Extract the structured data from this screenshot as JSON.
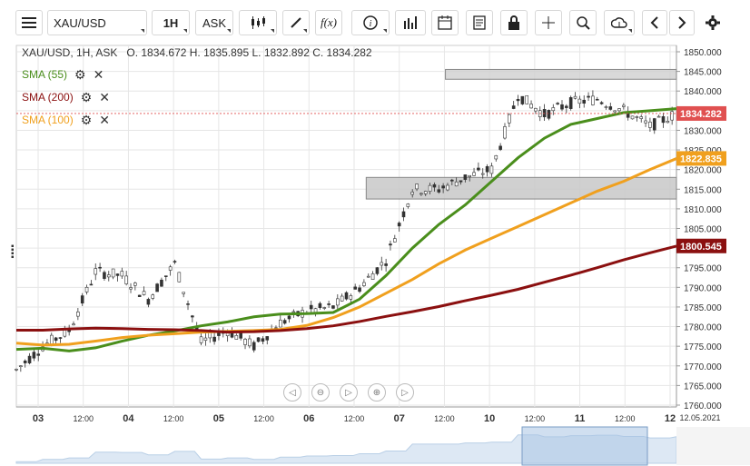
{
  "toolbar": {
    "symbol": "XAU/USD",
    "timeframe": "1H",
    "price_side": "ASK",
    "function_label": "f(x)",
    "icons": [
      "menu-icon",
      "candlestick-type-icon",
      "draw-pen-icon",
      "fx-icon",
      "info-icon",
      "bar-chart-icon",
      "calendar-icon",
      "report-icon",
      "lock-icon",
      "crosshair-icon",
      "zoom-icon",
      "cloud-upload-icon",
      "prev-arrow-icon",
      "next-arrow-icon",
      "settings-gear-icon"
    ]
  },
  "header": {
    "ohlc": "XAU/USD, 1H, ASK   O. 1834.672 H. 1835.895 L. 1832.892 C. 1834.282"
  },
  "indicators": [
    {
      "label": "SMA (55)",
      "color": "#4a8e1c"
    },
    {
      "label": "SMA (200)",
      "color": "#8b1010"
    },
    {
      "label": "SMA (100)",
      "color": "#f0a01e"
    }
  ],
  "chart_data": {
    "type": "line",
    "y_axis_ticks": [
      1760,
      1765,
      1770,
      1775,
      1780,
      1785,
      1790,
      1795,
      1800,
      1805,
      1810,
      1815,
      1820,
      1825,
      1830,
      1835,
      1840,
      1845,
      1850
    ],
    "y_tick_labels": [
      "1760.000",
      "1765.000",
      "1770.000",
      "1775.000",
      "1780.000",
      "1785.000",
      "1790.000",
      "1795.000",
      "1800.000",
      "1805.000",
      "1810.000",
      "1815.000",
      "1820.000",
      "1825.000",
      "1830.000",
      "1835.000",
      "1840.000",
      "1845.000",
      "1850.000"
    ],
    "ylim": [
      1760,
      1850
    ],
    "x_labels": [
      "03",
      "12:00",
      "04",
      "12:00",
      "05",
      "12:00",
      "06",
      "12:00",
      "07",
      "12:00",
      "10",
      "12:00",
      "11",
      "12:00",
      "12"
    ],
    "x_end_label": "12.05.2021",
    "grid": true,
    "price_labels": [
      {
        "value": 1834.282,
        "text": "1834.282",
        "color": "#e05050"
      },
      {
        "value": 1822.835,
        "text": "1822.835",
        "color": "#f0a01e"
      },
      {
        "value": 1800.545,
        "text": "1800.545",
        "color": "#8b1010"
      }
    ],
    "zones": [
      {
        "from": 1843,
        "to": 1845.5
      },
      {
        "from": 1812.5,
        "to": 1818
      }
    ],
    "series": [
      {
        "name": "SMA (55)",
        "color": "#4a8e1c",
        "x": [
          0,
          4,
          8,
          12,
          16,
          20,
          24,
          28,
          32,
          36,
          40,
          44,
          48,
          52,
          56,
          60,
          64,
          68,
          72,
          76,
          80,
          84,
          88,
          92,
          96,
          100
        ],
        "values": [
          1774.2,
          1774.5,
          1773.8,
          1774.6,
          1776.3,
          1777.8,
          1778.9,
          1780.2,
          1781.2,
          1782.5,
          1783.2,
          1783.3,
          1783.6,
          1787,
          1793,
          1800,
          1806,
          1811,
          1817,
          1823,
          1828,
          1831.5,
          1833,
          1834.5,
          1835,
          1835.5
        ]
      },
      {
        "name": "SMA (100)",
        "color": "#f0a01e",
        "x": [
          0,
          4,
          8,
          12,
          16,
          20,
          24,
          28,
          32,
          36,
          40,
          44,
          48,
          52,
          56,
          60,
          64,
          68,
          72,
          76,
          80,
          84,
          88,
          92,
          96,
          100
        ],
        "values": [
          1775.8,
          1775.3,
          1775.5,
          1776.3,
          1777.2,
          1777.8,
          1778.2,
          1778.6,
          1778.8,
          1779,
          1779.3,
          1780.3,
          1782.3,
          1785,
          1788.5,
          1792,
          1796,
          1799.5,
          1802.5,
          1805.5,
          1808.5,
          1811.5,
          1814.5,
          1817,
          1820,
          1822.8
        ]
      },
      {
        "name": "SMA (200)",
        "color": "#8b1010",
        "x": [
          0,
          4,
          8,
          12,
          16,
          20,
          24,
          28,
          32,
          36,
          40,
          44,
          48,
          52,
          56,
          60,
          64,
          68,
          72,
          76,
          80,
          84,
          88,
          92,
          96,
          100
        ],
        "values": [
          1779.1,
          1779.1,
          1779.4,
          1779.6,
          1779.5,
          1779.3,
          1779.2,
          1779,
          1778.6,
          1778.7,
          1779,
          1779.5,
          1780.2,
          1781.3,
          1782.6,
          1783.8,
          1785.1,
          1786.6,
          1788,
          1789.5,
          1791.3,
          1793.1,
          1795,
          1797,
          1798.8,
          1800.5
        ]
      },
      {
        "name": "Price",
        "color": "#333333",
        "x": [
          0,
          4,
          8,
          12,
          16,
          20,
          24,
          28,
          32,
          36,
          40,
          44,
          48,
          52,
          56,
          60,
          64,
          68,
          72,
          76,
          80,
          84,
          88,
          92,
          96,
          100
        ],
        "values": [
          1769,
          1775,
          1779,
          1794,
          1793,
          1787,
          1796,
          1776,
          1779,
          1775,
          1781,
          1784,
          1785,
          1790,
          1797,
          1815,
          1815,
          1818,
          1820,
          1839,
          1834,
          1837,
          1838,
          1835,
          1831,
          1834.3
        ]
      }
    ]
  },
  "navigator": {
    "buttons": [
      "scroll-left-icon",
      "zoom-out-icon",
      "reset-icon",
      "zoom-in-icon",
      "scroll-right-icon"
    ]
  }
}
